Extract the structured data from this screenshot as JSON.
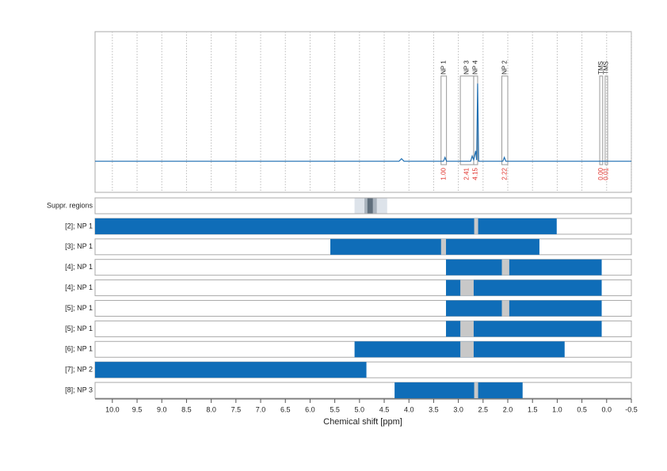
{
  "chart_data": {
    "type": "nmr",
    "xlabel": "Chemical shift [ppm]",
    "xlim": [
      10.35,
      -0.5
    ],
    "xticks": [
      {
        "value": 10,
        "label": "10.0"
      },
      9.5,
      {
        "value": 9,
        "label": "9.0"
      },
      8.5,
      {
        "value": 8,
        "label": "8.0"
      },
      7.5,
      {
        "value": 7,
        "label": "7.0"
      },
      6.5,
      {
        "value": 6,
        "label": "6.0"
      },
      5.5,
      {
        "value": 5,
        "label": "5.0"
      },
      4.5,
      {
        "value": 4,
        "label": "4.0"
      },
      3.5,
      {
        "value": 3,
        "label": "3.0"
      },
      2.5,
      {
        "value": 2,
        "label": "2.0"
      },
      1.5,
      {
        "value": 1,
        "label": "1.0"
      },
      0.5,
      {
        "value": 0,
        "label": "0.0"
      },
      -0.5
    ],
    "grid": true,
    "spectrum": {
      "color": "#1f6fb2",
      "ylim": [
        -24,
        100
      ],
      "x": [
        10.35,
        4.2,
        4.15,
        4.1,
        3.3,
        3.27,
        3.24,
        2.75,
        2.72,
        2.69,
        2.65,
        2.63,
        2.61,
        2.59,
        2.1,
        2.07,
        2.04,
        -0.5
      ],
      "values": [
        0,
        0,
        2,
        0,
        0,
        3,
        0,
        0,
        4,
        1,
        8,
        1,
        60,
        0,
        0,
        3,
        0,
        0
      ]
    },
    "regions": [
      {
        "label": "NP 1",
        "range": [
          3.35,
          3.24
        ],
        "integral": {
          "value": 1,
          "label": "1.00"
        }
      },
      {
        "label": "NP 3",
        "range": [
          2.96,
          2.69
        ],
        "integral": {
          "value": 2.41,
          "label": "2.41"
        }
      },
      {
        "label": "NP 4",
        "range": [
          2.69,
          2.61
        ],
        "integral": {
          "value": 4.15,
          "label": "4.15"
        }
      },
      {
        "label": "NP 2",
        "range": [
          2.12,
          2.0
        ],
        "integral": {
          "value": 2.22,
          "label": "2.22"
        }
      },
      {
        "label": "TMS",
        "range": [
          0.14,
          0.08
        ],
        "integral": {
          "value": 0,
          "label": "0.00"
        }
      },
      {
        "label": "TMS",
        "range": [
          0.03,
          -0.02
        ],
        "integral": {
          "value": 0.01,
          "label": "0.01"
        }
      }
    ],
    "region_color": "#999999",
    "integral_color": "#e0302a",
    "suppression": {
      "label": "Suppr. regions",
      "bands": [
        {
          "range": [
            5.1,
            4.44
          ],
          "color": "#dde3ea"
        },
        {
          "range": [
            4.9,
            4.65
          ],
          "color": "#aab4be"
        },
        {
          "range": [
            4.84,
            4.73
          ],
          "color": "#5f6e7c"
        }
      ]
    },
    "bar_color": "#0f6db8",
    "gap_color": "#c8c8c8",
    "rows": [
      {
        "label": "[2]; NP 1",
        "bars": [
          [
            10.35,
            1.01
          ]
        ],
        "gaps": [
          [
            2.68,
            2.6
          ]
        ]
      },
      {
        "label": "[3]; NP 1",
        "bars": [
          [
            5.59,
            1.36
          ]
        ],
        "gaps": [
          [
            3.35,
            3.25
          ]
        ]
      },
      {
        "label": "[4]; NP 1",
        "bars": [
          [
            3.25,
            0.1
          ]
        ],
        "gaps": [
          [
            2.12,
            1.97
          ]
        ]
      },
      {
        "label": "[4]; NP 1",
        "bars": [
          [
            3.25,
            0.1
          ]
        ],
        "gaps": [
          [
            2.96,
            2.69
          ]
        ]
      },
      {
        "label": "[5]; NP 1",
        "bars": [
          [
            3.25,
            0.1
          ]
        ],
        "gaps": [
          [
            2.12,
            1.97
          ]
        ]
      },
      {
        "label": "[5]; NP 1",
        "bars": [
          [
            3.25,
            0.1
          ]
        ],
        "gaps": [
          [
            2.96,
            2.69
          ]
        ]
      },
      {
        "label": "[6]; NP 1",
        "bars": [
          [
            5.1,
            0.85
          ]
        ],
        "gaps": [
          [
            2.96,
            2.69
          ]
        ]
      },
      {
        "label": "[7]; NP 2",
        "bars": [
          [
            10.35,
            4.86
          ]
        ],
        "gaps": []
      },
      {
        "label": "[8]; NP 3",
        "bars": [
          [
            4.29,
            1.7
          ]
        ],
        "gaps": [
          [
            2.68,
            2.6
          ]
        ]
      }
    ]
  }
}
